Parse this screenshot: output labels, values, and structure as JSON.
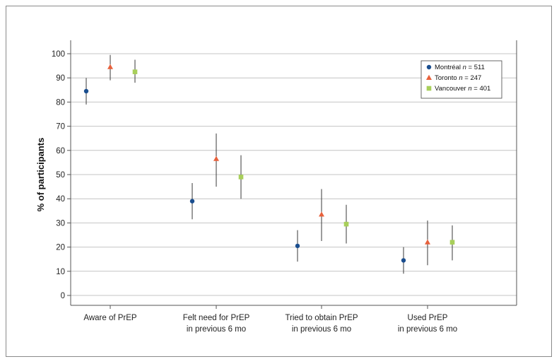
{
  "chart_data": {
    "type": "scatter",
    "title": "",
    "xlabel": "",
    "ylabel": "% of participants",
    "ylim": [
      0,
      100
    ],
    "yticks": [
      0,
      10,
      20,
      30,
      40,
      50,
      60,
      70,
      80,
      90,
      100
    ],
    "grid": true,
    "legend_position": "top-right",
    "categories": [
      [
        "Aware of PrEP"
      ],
      [
        "Felt need for PrEP",
        "in previous 6 mo"
      ],
      [
        "Tried to obtain PrEP",
        "in previous 6 mo"
      ],
      [
        "Used PrEP",
        "in previous 6 mo"
      ]
    ],
    "series": [
      {
        "name": "Montréal",
        "n_label": "n = 511",
        "n_var": "n",
        "n_rest": " = 511",
        "marker": "circle",
        "color": "#1a4e8f",
        "values": [
          84.5,
          39,
          20.5,
          14.5
        ],
        "ci_low": [
          79,
          31.5,
          14,
          9
        ],
        "ci_high": [
          90,
          46.5,
          27,
          20
        ]
      },
      {
        "name": "Toronto",
        "n_label": "n = 247",
        "n_var": "n",
        "n_rest": " = 247",
        "marker": "triangle",
        "color": "#e8613c",
        "values": [
          94.5,
          56.5,
          33.5,
          22
        ],
        "ci_low": [
          89,
          45,
          22.5,
          12.5
        ],
        "ci_high": [
          99.5,
          67,
          44,
          31
        ]
      },
      {
        "name": "Vancouver",
        "n_label": "n = 401",
        "n_var": "n",
        "n_rest": " = 401",
        "marker": "square",
        "color": "#a8cf5a",
        "values": [
          92.5,
          49,
          29.5,
          22
        ],
        "ci_low": [
          88,
          40,
          21.5,
          14.5
        ],
        "ci_high": [
          97.5,
          58,
          37.5,
          29
        ]
      }
    ]
  }
}
